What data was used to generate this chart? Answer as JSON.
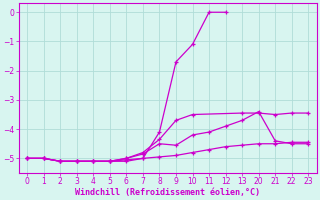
{
  "xlabel": "Windchill (Refroidissement éolien,°C)",
  "bg_color": "#d8f5f0",
  "line_color": "#cc00cc",
  "grid_color": "#b0ddd8",
  "xlim": [
    -0.5,
    17.5
  ],
  "ylim": [
    -5.5,
    0.3
  ],
  "yticks": [
    0,
    -1,
    -2,
    -3,
    -4,
    -5
  ],
  "xtick_positions": [
    0,
    1,
    2,
    3,
    4,
    5,
    6,
    7,
    8,
    9,
    10,
    11,
    12,
    13,
    14,
    15,
    16,
    17
  ],
  "xtick_labels": [
    "0",
    "1",
    "2",
    "3",
    "4",
    "5",
    "6",
    "7",
    "8",
    "9",
    "10",
    "11",
    "12",
    "13",
    "20",
    "21",
    "22",
    "23"
  ],
  "series": [
    {
      "x": [
        0,
        1,
        2,
        3,
        4,
        5,
        6,
        7,
        8,
        9,
        10,
        11,
        12
      ],
      "y": [
        -5.0,
        -5.0,
        -5.1,
        -5.1,
        -5.1,
        -5.1,
        -5.1,
        -5.0,
        -4.1,
        -1.7,
        -1.1,
        0.0,
        0.0
      ]
    },
    {
      "x": [
        0,
        1,
        2,
        3,
        4,
        5,
        6,
        7,
        8,
        9,
        10,
        13,
        14,
        15,
        16,
        17
      ],
      "y": [
        -5.0,
        -5.0,
        -5.1,
        -5.1,
        -5.1,
        -5.1,
        -5.0,
        -4.8,
        -4.35,
        -3.7,
        -3.5,
        -3.45,
        -3.45,
        -3.5,
        -3.45,
        -3.45
      ]
    },
    {
      "x": [
        0,
        1,
        2,
        3,
        4,
        5,
        6,
        7,
        8,
        9,
        10,
        11,
        12,
        13,
        14,
        15,
        16,
        17
      ],
      "y": [
        -5.0,
        -5.0,
        -5.1,
        -5.1,
        -5.1,
        -5.1,
        -5.0,
        -4.85,
        -4.5,
        -4.55,
        -4.2,
        -4.1,
        -3.9,
        -3.7,
        -3.4,
        -4.4,
        -4.5,
        -4.5
      ]
    },
    {
      "x": [
        0,
        1,
        2,
        3,
        4,
        5,
        6,
        7,
        8,
        9,
        10,
        11,
        12,
        13,
        14,
        15,
        16,
        17
      ],
      "y": [
        -5.0,
        -5.0,
        -5.1,
        -5.1,
        -5.1,
        -5.1,
        -5.05,
        -5.0,
        -4.95,
        -4.9,
        -4.8,
        -4.7,
        -4.6,
        -4.55,
        -4.5,
        -4.5,
        -4.45,
        -4.45
      ]
    }
  ]
}
